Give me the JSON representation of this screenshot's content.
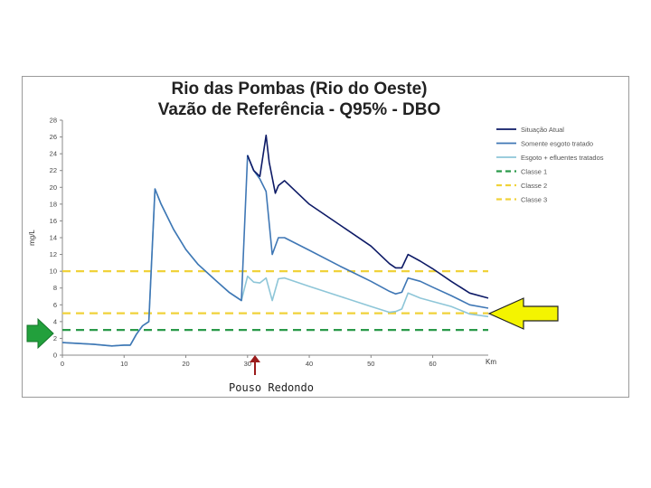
{
  "chart_data": {
    "type": "line",
    "title": [
      "Rio das Pombas (Rio do Oeste)",
      "Vazão de Referência - Q95% - DBO"
    ],
    "ylabel": "mg/L",
    "xlabel": "Km",
    "xlim": [
      0,
      69
    ],
    "ylim": [
      0,
      28
    ],
    "xticks": [
      0,
      10,
      20,
      30,
      40,
      50,
      60
    ],
    "yticks": [
      0,
      2,
      4,
      6,
      8,
      10,
      12,
      14,
      16,
      18,
      20,
      22,
      24,
      26,
      28
    ],
    "grid": false,
    "legend_position": "right",
    "series": [
      {
        "name": "Situação Atual",
        "color": "#0d1a66",
        "x": [
          30.0,
          31.0,
          32.0,
          33.0,
          33.5,
          34.5,
          35.0,
          36.0,
          40.0,
          45.0,
          50.0,
          53.0,
          54.0,
          55.0,
          56.0,
          58.0,
          60.0,
          63.0,
          66.0,
          69.0
        ],
        "values": [
          23.8,
          22.0,
          21.3,
          26.2,
          23.0,
          19.3,
          20.2,
          20.8,
          18.0,
          15.5,
          13.0,
          10.9,
          10.4,
          10.4,
          12.0,
          11.2,
          10.3,
          8.8,
          7.4,
          6.8
        ]
      },
      {
        "name": "Somente esgoto tratado",
        "color": "#3f77b5",
        "x": [
          0.0,
          5.0,
          8.0,
          10.0,
          11.0,
          12.0,
          13.0,
          14.0,
          15.0,
          16.0,
          18.0,
          20.0,
          22.0,
          25.0,
          27.0,
          29.0,
          30.0,
          31.0,
          32.0,
          33.0,
          34.0,
          35.0,
          36.0,
          40.0,
          45.0,
          50.0,
          53.0,
          54.0,
          55.0,
          56.0,
          58.0,
          60.0,
          63.0,
          66.0,
          69.0
        ],
        "values": [
          1.5,
          1.3,
          1.1,
          1.2,
          1.2,
          2.5,
          3.5,
          4.0,
          19.8,
          18.0,
          15.0,
          12.6,
          10.8,
          8.8,
          7.5,
          6.5,
          23.8,
          22.0,
          21.0,
          19.5,
          12.0,
          14.0,
          14.0,
          12.5,
          10.6,
          8.8,
          7.6,
          7.3,
          7.5,
          9.2,
          8.8,
          8.1,
          7.1,
          6.0,
          5.6
        ]
      },
      {
        "name": "Esgoto + efluentes tratados",
        "color": "#8ec6d8",
        "x": [
          0.0,
          5.0,
          8.0,
          10.0,
          11.0,
          12.0,
          13.0,
          14.0,
          15.0,
          16.0,
          18.0,
          20.0,
          22.0,
          25.0,
          27.0,
          29.0,
          30.0,
          31.0,
          32.0,
          33.0,
          34.0,
          35.0,
          36.0,
          40.0,
          45.0,
          50.0,
          53.0,
          54.0,
          55.0,
          56.0,
          58.0,
          60.0,
          63.0,
          66.0,
          69.0
        ],
        "values": [
          1.5,
          1.3,
          1.1,
          1.2,
          1.2,
          2.5,
          3.5,
          4.0,
          19.8,
          18.0,
          15.0,
          12.6,
          10.8,
          8.8,
          7.5,
          6.5,
          9.4,
          8.7,
          8.6,
          9.2,
          6.5,
          9.1,
          9.2,
          8.2,
          7.0,
          5.8,
          5.1,
          5.2,
          5.5,
          7.4,
          6.8,
          6.4,
          5.8,
          4.9,
          4.6
        ]
      },
      {
        "name": "Classe 1",
        "color": "#2a9a4a",
        "dashed": true,
        "x": [
          0,
          69
        ],
        "values": [
          3,
          3
        ]
      },
      {
        "name": "Classe 2",
        "color": "#f0d23a",
        "dashed": true,
        "x": [
          0,
          69
        ],
        "values": [
          5,
          5
        ]
      },
      {
        "name": "Classe 3",
        "color": "#f0d23a",
        "dashed": true,
        "x": [
          0,
          69
        ],
        "values": [
          10,
          10
        ]
      }
    ],
    "annotations": [
      {
        "text": "Pouso Redondo",
        "x": 31,
        "arrow_color": "#9b1c1c"
      },
      {
        "arrow": "right-pointing",
        "color": "#22a03c",
        "target_y": 3,
        "side": "left"
      },
      {
        "arrow": "left-pointing",
        "color": "#f4f400",
        "target_y": 5,
        "side": "right"
      }
    ]
  }
}
